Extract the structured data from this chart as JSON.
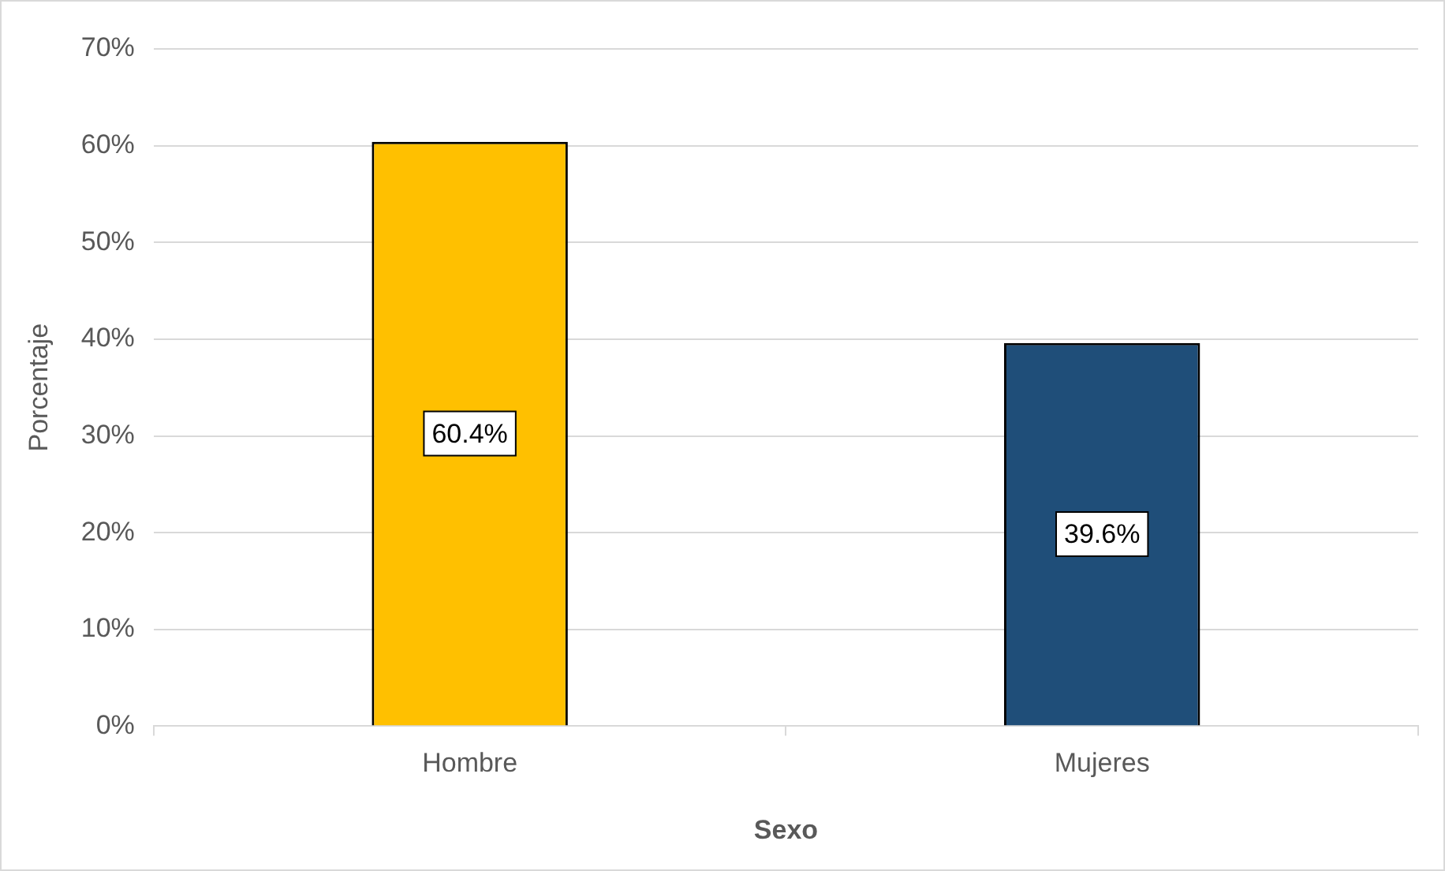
{
  "chart_data": {
    "type": "bar",
    "xlabel": "Sexo",
    "ylabel": "Porcentaje",
    "categories": [
      "Hombre",
      "Mujeres"
    ],
    "values": [
      60.4,
      39.6
    ],
    "colors": [
      "#ffc000",
      "#1f4e79"
    ],
    "value_labels": [
      "60.4%",
      "39.6%"
    ],
    "ylim": [
      0,
      70
    ],
    "yticks": [
      {
        "value": 0,
        "label": "0%"
      },
      {
        "value": 10,
        "label": "10%"
      },
      {
        "value": 20,
        "label": "20%"
      },
      {
        "value": 30,
        "label": "30%"
      },
      {
        "value": 40,
        "label": "40%"
      },
      {
        "value": 50,
        "label": "50%"
      },
      {
        "value": 60,
        "label": "60%"
      },
      {
        "value": 70,
        "label": "70%"
      }
    ],
    "grid": "y",
    "legend": false
  }
}
